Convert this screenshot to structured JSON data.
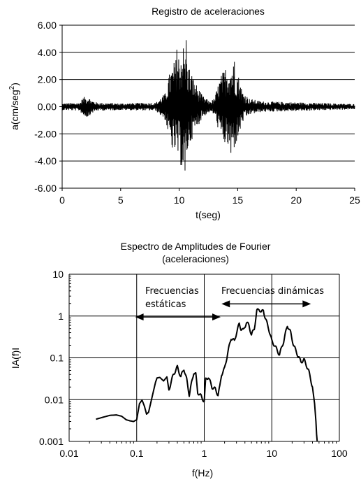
{
  "chart_data": [
    {
      "type": "line",
      "title": "Registro de aceleraciones",
      "xlabel": "t(seg)",
      "ylabel": "a(cm/seg2)",
      "ylabel_parts": {
        "main": "a(cm/seg",
        "sup": "2",
        "end": ")"
      },
      "xlim": [
        0,
        25
      ],
      "ylim": [
        -6,
        6
      ],
      "x_ticks": [
        "0",
        "5",
        "10",
        "15",
        "20",
        "25"
      ],
      "x_tick_values": [
        0,
        5,
        10,
        15,
        20,
        25
      ],
      "y_ticks": [
        "6.00",
        "4.00",
        "2.00",
        "0.00",
        "-2.00",
        "-4.00",
        "-6.00"
      ],
      "y_tick_values": [
        6,
        4,
        2,
        0,
        -2,
        -4,
        -6
      ],
      "grid": "horizontal",
      "series": [
        {
          "envelope": {
            "t": [
              0,
              1.5,
              1.8,
              2.2,
              2.5,
              3,
              5,
              8,
              8.8,
              9.2,
              9.6,
              10.0,
              10.3,
              10.6,
              11.0,
              11.5,
              12.0,
              12.6,
              13.0,
              13.5,
              14.0,
              14.6,
              15.0,
              15.4,
              16.0,
              17,
              19,
              21,
              23,
              25
            ],
            "amp": [
              0.25,
              0.3,
              0.7,
              0.8,
              0.5,
              0.3,
              0.25,
              0.3,
              1.0,
              2.6,
              3.4,
              4.0,
              4.8,
              3.8,
              2.6,
              1.6,
              0.8,
              0.4,
              0.6,
              2.2,
              3.0,
              3.3,
              2.6,
              1.2,
              0.6,
              0.4,
              0.35,
              0.3,
              0.25,
              0.2
            ]
          },
          "peaks": [
            {
              "t": 10.6,
              "a": 4.9
            },
            {
              "t": 10.5,
              "a": -4.7
            },
            {
              "t": 9.8,
              "a": 4.2
            },
            {
              "t": 10.2,
              "a": -4.3
            },
            {
              "t": 14.7,
              "a": 3.3
            },
            {
              "t": 14.4,
              "a": -3.4
            },
            {
              "t": 9.4,
              "a": -3.0
            }
          ]
        }
      ]
    },
    {
      "type": "line",
      "title": "Espectro de Amplitudes de Fourier",
      "subtitle": "(aceleraciones)",
      "xlabel": "f(Hz)",
      "ylabel": "IA(f)I",
      "xscale": "log",
      "yscale": "log",
      "xlim": [
        0.01,
        100
      ],
      "ylim": [
        0.001,
        10
      ],
      "x_ticks": [
        "0.01",
        "0.1",
        "1",
        "10",
        "100"
      ],
      "x_tick_values": [
        0.01,
        0.1,
        1,
        10,
        100
      ],
      "y_ticks": [
        "10",
        "1",
        "0.1",
        "0.01",
        "0.001"
      ],
      "y_tick_values": [
        10,
        1,
        0.1,
        0.01,
        0.001
      ],
      "grid": "both",
      "series": [
        {
          "x": [
            0.025,
            0.03,
            0.04,
            0.05,
            0.06,
            0.07,
            0.08,
            0.09,
            0.1,
            0.11,
            0.12,
            0.13,
            0.14,
            0.15,
            0.17,
            0.19,
            0.2,
            0.22,
            0.25,
            0.28,
            0.3,
            0.32,
            0.35,
            0.4,
            0.45,
            0.5,
            0.55,
            0.6,
            0.65,
            0.7,
            0.75,
            0.8,
            0.9,
            1.0,
            1.05,
            1.15,
            1.3,
            1.45,
            1.6,
            1.7,
            1.8,
            2.0,
            2.2,
            2.5,
            2.8,
            3.0,
            3.3,
            3.5,
            3.8,
            4.2,
            4.6,
            5.0,
            5.5,
            6.0,
            6.5,
            7.0,
            7.5,
            8.0,
            9.0,
            10,
            11,
            12,
            13,
            15,
            17,
            19,
            21,
            24,
            27,
            30,
            35,
            40,
            43,
            45,
            46,
            47
          ],
          "y": [
            0.0034,
            0.0037,
            0.0042,
            0.0043,
            0.004,
            0.0033,
            0.0031,
            0.003,
            0.0033,
            0.008,
            0.0098,
            0.007,
            0.0045,
            0.005,
            0.012,
            0.026,
            0.033,
            0.034,
            0.028,
            0.035,
            0.017,
            0.025,
            0.04,
            0.06,
            0.035,
            0.055,
            0.03,
            0.013,
            0.025,
            0.045,
            0.04,
            0.015,
            0.012,
            0.009,
            0.03,
            0.035,
            0.02,
            0.018,
            0.013,
            0.02,
            0.04,
            0.055,
            0.12,
            0.3,
            0.25,
            0.4,
            0.65,
            0.5,
            0.45,
            0.7,
            0.6,
            0.35,
            0.5,
            1.3,
            1.5,
            1.2,
            1.4,
            0.9,
            0.5,
            0.25,
            0.2,
            0.15,
            0.12,
            0.25,
            0.6,
            0.4,
            0.2,
            0.12,
            0.08,
            0.09,
            0.05,
            0.02,
            0.008,
            0.003,
            0.0015,
            0.001
          ]
        }
      ],
      "annotations": {
        "static_label_1": "Frecuencias",
        "static_label_2": "estáticas",
        "dynamic_label": "Frecuencias dinámicas",
        "static_arrow_x": [
          0.095,
          1.75
        ],
        "static_arrow_y": 0.95,
        "dynamic_arrow_x": [
          1.8,
          38
        ],
        "dynamic_arrow_y": 1.95
      }
    }
  ]
}
